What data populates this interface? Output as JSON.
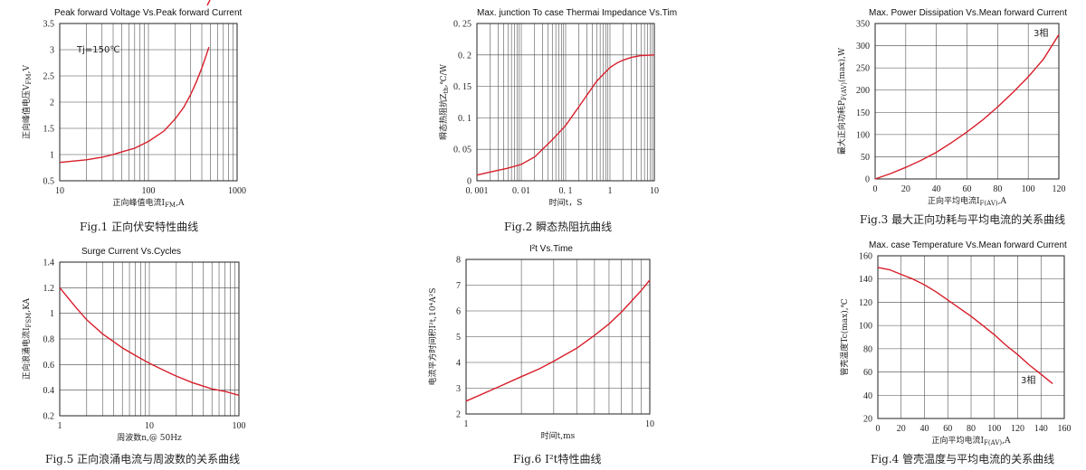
{
  "chart_data": [
    {
      "id": "fig1",
      "type": "line",
      "title": "Peak forward Voltage Vs.Peak forward Current",
      "xlabel": "正向峰值电流I",
      "xlabel_sub": "FM",
      "xlabel_tail": ",A",
      "ylabel": "正向峰值电压V",
      "ylabel_sub": "FM",
      "ylabel_tail": ",V",
      "xscale": "log",
      "xlim": [
        10,
        1000
      ],
      "ylim": [
        0.5,
        3.5
      ],
      "xticks": [
        10,
        100,
        1000
      ],
      "xtick_labels": [
        "10",
        "100",
        "1000"
      ],
      "yticks": [
        0.5,
        1,
        1.5,
        2,
        2.5,
        3,
        3.5
      ],
      "ytick_labels": [
        "0.5",
        "1",
        "1.5",
        "2",
        "2.5",
        "3",
        "3.5"
      ],
      "annotation": "Tj=150℃",
      "caption": "Fig.1 正向伏安特性曲线",
      "series": [
        {
          "x": [
            10,
            20,
            30,
            40,
            50,
            70,
            100,
            150,
            200,
            250,
            300,
            350,
            400,
            450,
            480
          ],
          "y": [
            0.85,
            0.9,
            0.95,
            1.0,
            1.05,
            1.12,
            1.25,
            1.45,
            1.68,
            1.9,
            2.15,
            2.4,
            2.65,
            2.9,
            3.05
          ]
        }
      ]
    },
    {
      "id": "fig2",
      "type": "line",
      "title": "Max. junction To case Thermai Impedance Vs.Tim",
      "xlabel": "时间t，S",
      "ylabel": "瞬态热阻抗Z",
      "ylabel_sub": "th",
      "ylabel_tail": ",℃/W",
      "xscale": "log",
      "xlim": [
        0.001,
        10
      ],
      "ylim": [
        0,
        0.25
      ],
      "xticks": [
        0.001,
        0.01,
        0.1,
        1,
        10
      ],
      "xtick_labels": [
        "0. 001",
        "0. 01",
        "0. 1",
        "1",
        "10"
      ],
      "yticks": [
        0,
        0.05,
        0.1,
        0.15,
        0.2,
        0.25
      ],
      "ytick_labels": [
        "0",
        "0. 05",
        "0. 1",
        "0. 15",
        "0. 2",
        "0. 25"
      ],
      "caption": "Fig.2 瞬态热阻抗曲线",
      "series": [
        {
          "x": [
            0.001,
            0.002,
            0.005,
            0.01,
            0.02,
            0.05,
            0.1,
            0.2,
            0.5,
            1,
            1.5,
            2,
            3,
            5,
            10
          ],
          "y": [
            0.009,
            0.014,
            0.02,
            0.026,
            0.038,
            0.065,
            0.088,
            0.118,
            0.158,
            0.18,
            0.188,
            0.192,
            0.196,
            0.199,
            0.2
          ]
        }
      ]
    },
    {
      "id": "fig3",
      "type": "line",
      "title": "Max. Power Dissipation Vs.Mean forward Current",
      "xlabel": "正向平均电流I",
      "xlabel_sub": "F(AV)",
      "xlabel_tail": ",A",
      "ylabel": "最大正向功耗P",
      "ylabel_sub": "F(AV)",
      "ylabel_tail": "(max),W",
      "xscale": "linear",
      "xlim": [
        0,
        120
      ],
      "ylim": [
        0,
        350
      ],
      "xticks": [
        0,
        20,
        40,
        60,
        80,
        100,
        120
      ],
      "xtick_labels": [
        "0",
        "20",
        "40",
        "60",
        "80",
        "100",
        "120"
      ],
      "yticks": [
        0,
        50,
        100,
        150,
        200,
        250,
        300,
        350
      ],
      "ytick_labels": [
        "0",
        "50",
        "100",
        "150",
        "200",
        "250",
        "300",
        "350"
      ],
      "annotation": "3相",
      "caption": "Fig.3 最大正向功耗与平均电流的关系曲线",
      "series": [
        {
          "x": [
            0,
            10,
            20,
            30,
            40,
            50,
            60,
            70,
            80,
            90,
            100,
            110,
            120
          ],
          "y": [
            0,
            12,
            26,
            42,
            60,
            82,
            106,
            132,
            162,
            195,
            230,
            270,
            325
          ]
        }
      ]
    },
    {
      "id": "fig5",
      "type": "line",
      "title": "Surge Current Vs.Cycles",
      "xlabel": "周波数n,@ 50Hz",
      "ylabel": "正向浪涌电流I",
      "ylabel_sub": "FSM",
      "ylabel_tail": ",KA",
      "xscale": "log",
      "xlim": [
        1,
        100
      ],
      "ylim": [
        0.2,
        1.4
      ],
      "xticks": [
        1,
        10,
        100
      ],
      "xtick_labels": [
        "1",
        "10",
        "100"
      ],
      "yticks": [
        0.2,
        0.4,
        0.6,
        0.8,
        1,
        1.2,
        1.4
      ],
      "ytick_labels": [
        "0.2",
        "0.4",
        "0.6",
        "0.8",
        "1",
        "1.2",
        "1.4"
      ],
      "caption": "Fig.5 正向浪涌电流与周波数的关系曲线",
      "series": [
        {
          "x": [
            1,
            1.5,
            2,
            3,
            5,
            7,
            10,
            15,
            20,
            30,
            50,
            70,
            100
          ],
          "y": [
            1.2,
            1.05,
            0.95,
            0.84,
            0.73,
            0.67,
            0.61,
            0.55,
            0.51,
            0.46,
            0.41,
            0.39,
            0.36
          ]
        }
      ]
    },
    {
      "id": "fig6",
      "type": "line",
      "title": "I²t  Vs.Time",
      "xlabel": "时间t,ms",
      "ylabel": "电流平方时间积I²t,10⁴A²S",
      "xscale": "log",
      "xlim": [
        1,
        10
      ],
      "ylim": [
        2,
        8
      ],
      "xticks": [
        1,
        10
      ],
      "xtick_labels": [
        "1",
        "10"
      ],
      "yticks": [
        2,
        3,
        4,
        5,
        6,
        7,
        8
      ],
      "ytick_labels": [
        "2",
        "3",
        "4",
        "5",
        "6",
        "7",
        "8"
      ],
      "caption": "Fig.6 I²t特性曲线",
      "series": [
        {
          "x": [
            1,
            1.5,
            2,
            2.5,
            3,
            4,
            5,
            6,
            7,
            8,
            9,
            10
          ],
          "y": [
            2.5,
            3.05,
            3.45,
            3.75,
            4.05,
            4.55,
            5.05,
            5.5,
            5.95,
            6.4,
            6.8,
            7.2
          ]
        }
      ]
    },
    {
      "id": "fig4",
      "type": "line",
      "title": "Max. case Temperature Vs.Mean forward Current",
      "xlabel": "正向平均电流I",
      "xlabel_sub": "F(AV)",
      "xlabel_tail": ",A",
      "ylabel": "管壳温度Tc(max),℃",
      "xscale": "linear",
      "xlim": [
        0,
        160
      ],
      "ylim": [
        20,
        160
      ],
      "xticks": [
        0,
        20,
        40,
        60,
        80,
        100,
        120,
        140,
        160
      ],
      "xtick_labels": [
        "0",
        "20",
        "40",
        "60",
        "80",
        "100",
        "120",
        "140",
        "160"
      ],
      "yticks": [
        20,
        40,
        60,
        80,
        100,
        120,
        140,
        160
      ],
      "ytick_labels": [
        "20",
        "40",
        "60",
        "80",
        "100",
        "120",
        "140",
        "160"
      ],
      "annotation": "3相",
      "caption": "Fig.4 管壳温度与平均电流的关系曲线",
      "series": [
        {
          "x": [
            0,
            10,
            20,
            30,
            40,
            50,
            60,
            70,
            80,
            90,
            100,
            110,
            120,
            130,
            140,
            150
          ],
          "y": [
            150,
            148,
            144,
            140,
            135,
            129,
            122,
            115,
            108,
            100,
            92,
            83,
            75,
            66,
            58,
            50
          ]
        }
      ]
    }
  ]
}
